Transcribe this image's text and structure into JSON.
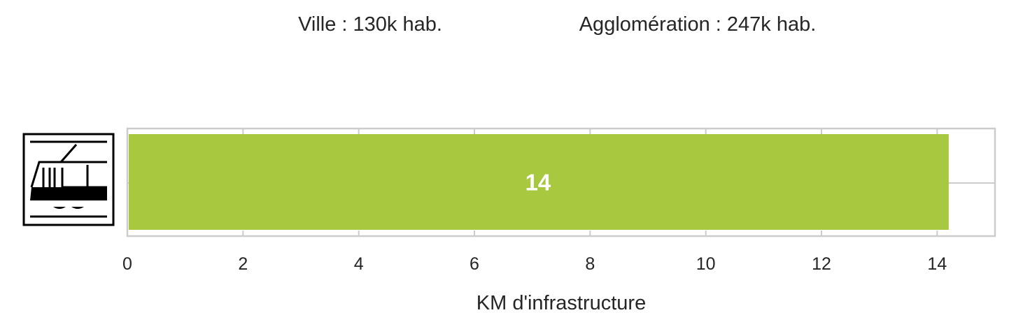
{
  "header": {
    "ville": "Ville : 130k hab.",
    "agglomeration": "Agglomération : 247k hab."
  },
  "icon": "tram-icon",
  "colors": {
    "bar": "#a8c840",
    "frame": "#cccccc",
    "text": "#262626",
    "bar_label": "#ffffff"
  },
  "chart_data": {
    "type": "bar",
    "orientation": "horizontal",
    "categories": [
      "tram"
    ],
    "values": [
      14.2
    ],
    "data_labels": [
      "14"
    ],
    "xlabel": "KM d'infrastructure",
    "ylabel": "",
    "xlim": [
      0,
      15
    ],
    "xticks": [
      0,
      2,
      4,
      6,
      8,
      10,
      12,
      14
    ],
    "xtick_labels": [
      "0",
      "2",
      "4",
      "6",
      "8",
      "10",
      "12",
      "14"
    ],
    "grid": true
  }
}
